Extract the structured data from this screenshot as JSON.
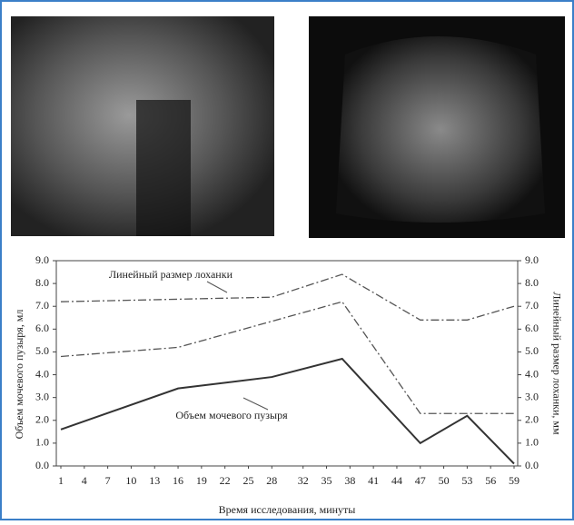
{
  "chart_data": {
    "type": "line",
    "y_label": "Объем мочевого пузыря, мл",
    "y2_label": "Линейный размер лоханки, мм",
    "x_label": "Время исследования, минуты",
    "xlim": [
      1,
      59
    ],
    "xticks": [
      1,
      4,
      7,
      10,
      13,
      16,
      19,
      22,
      25,
      28,
      32,
      35,
      38,
      41,
      44,
      47,
      50,
      53,
      56,
      59
    ],
    "ylim": [
      0,
      9
    ],
    "yticks": [
      {
        "value": 0,
        "label": "0.0"
      },
      {
        "value": 1,
        "label": "1.0"
      },
      {
        "value": 2,
        "label": "2.0"
      },
      {
        "value": 3,
        "label": "3.0"
      },
      {
        "value": 4,
        "label": "4.0"
      },
      {
        "value": 5,
        "label": "5.0"
      },
      {
        "value": 6,
        "label": "6.0"
      },
      {
        "value": 7,
        "label": "7.0"
      },
      {
        "value": 8,
        "label": "8.0"
      },
      {
        "value": 9,
        "label": "9.0"
      }
    ],
    "y2lim": [
      0,
      9
    ],
    "y2ticks": [
      {
        "value": 0,
        "label": "0.0"
      },
      {
        "value": 1,
        "label": "1.0"
      },
      {
        "value": 2,
        "label": "2.0"
      },
      {
        "value": 3,
        "label": "3.0"
      },
      {
        "value": 4,
        "label": "4.0"
      },
      {
        "value": 5,
        "label": "5.0"
      },
      {
        "value": 6,
        "label": "6.0"
      },
      {
        "value": 7,
        "label": "7.0"
      },
      {
        "value": 8,
        "label": "8.0"
      },
      {
        "value": 9,
        "label": "9.0"
      }
    ],
    "series": [
      {
        "name": "Объем мочевого пузыря",
        "color": "#333333",
        "style": "solid",
        "x": [
          1,
          16,
          28,
          37,
          47,
          53,
          59
        ],
        "values": [
          1.6,
          3.4,
          3.9,
          4.7,
          1.0,
          2.2,
          0.1
        ]
      },
      {
        "name": "Линейный размер лоханки",
        "color": "#555555",
        "style": "dashdot",
        "axis": "y2",
        "x": [
          1,
          28,
          37,
          47,
          53,
          59
        ],
        "values": [
          7.2,
          7.4,
          8.4,
          6.4,
          6.4,
          7.0
        ]
      },
      {
        "color": "#555555",
        "style": "dashdot",
        "axis": "y2",
        "x": [
          1,
          16,
          37,
          47,
          59
        ],
        "values": [
          4.8,
          5.2,
          7.2,
          2.3,
          2.3
        ]
      }
    ]
  }
}
